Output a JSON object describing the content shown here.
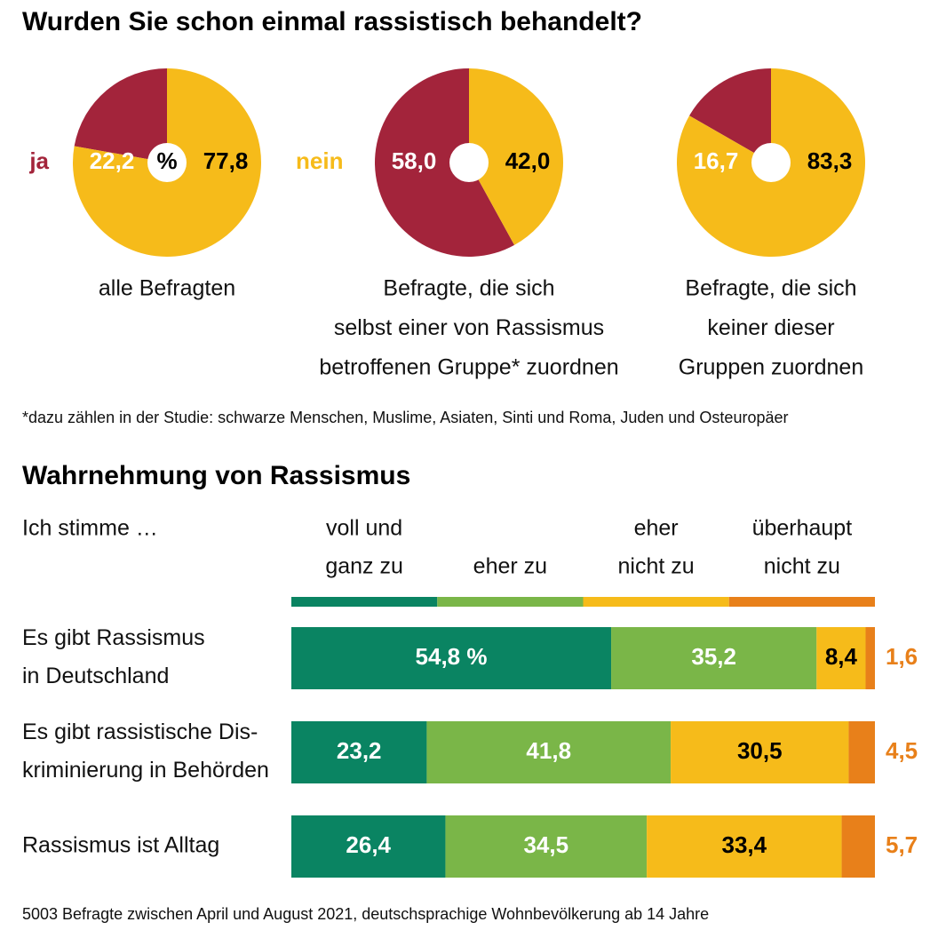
{
  "title": "Wurden Sie schon einmal rassistisch behandelt?",
  "footnote": "*dazu zählen in der Studie: schwarze Menschen, Muslime, Asiaten, Sinti und Roma, Juden und Osteuropäer",
  "source": "5003 Befragte zwischen April und August 2021, deutschsprachige Wohnbevölkerung ab 14 Jahre",
  "chart_data": [
    {
      "type": "pie",
      "categories": [
        "ja",
        "nein"
      ],
      "center_label": "%",
      "values": [
        22.2,
        77.8
      ],
      "value_labels": [
        "22,2",
        "77,8"
      ],
      "colors": [
        "#a3243b",
        "#f6bb1a"
      ],
      "caption": [
        "alle Befragten"
      ]
    },
    {
      "type": "pie",
      "values": [
        58.0,
        42.0
      ],
      "value_labels": [
        "58,0",
        "42,0"
      ],
      "colors": [
        "#a3243b",
        "#f6bb1a"
      ],
      "caption": [
        "Befragte, die sich",
        "selbst einer von Rassismus",
        "betroffenen Gruppe* zuordnen"
      ]
    },
    {
      "type": "pie",
      "values": [
        16.7,
        83.3
      ],
      "value_labels": [
        "16,7",
        "83,3"
      ],
      "colors": [
        "#a3243b",
        "#f6bb1a"
      ],
      "caption": [
        "Befragte, die sich",
        "keiner dieser",
        "Gruppen zuordnen"
      ]
    },
    {
      "type": "bar",
      "orientation": "horizontal",
      "stacked": true,
      "title": "Wahrnehmung von Rassismus",
      "header": "Ich stimme …",
      "categories": [
        [
          "Es gibt Rassismus",
          "in Deutschland"
        ],
        [
          "Es gibt rassistische Dis-",
          "kriminierung in Behörden"
        ],
        [
          "Rassismus ist Alltag"
        ]
      ],
      "xlim": [
        0,
        100
      ],
      "series": [
        {
          "name": [
            "voll und",
            "ganz zu"
          ],
          "color": "#0a8462",
          "values": [
            54.8,
            23.2,
            26.4
          ],
          "value_labels": [
            "54,8 %",
            "23,2",
            "26,4"
          ]
        },
        {
          "name": [
            "eher zu"
          ],
          "color": "#7ab648",
          "values": [
            35.2,
            41.8,
            34.5
          ],
          "value_labels": [
            "35,2",
            "41,8",
            "34,5"
          ]
        },
        {
          "name": [
            "eher",
            "nicht zu"
          ],
          "color": "#f6bb1a",
          "values": [
            8.4,
            30.5,
            33.4
          ],
          "value_labels": [
            "8,4",
            "30,5",
            "33,4"
          ]
        },
        {
          "name": [
            "überhaupt",
            "nicht zu"
          ],
          "color": "#e8801a",
          "values": [
            1.6,
            4.5,
            5.7
          ],
          "value_labels": [
            "1,6",
            "4,5",
            "5,7"
          ]
        }
      ]
    }
  ]
}
